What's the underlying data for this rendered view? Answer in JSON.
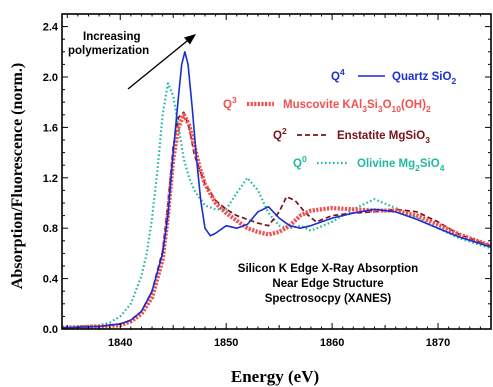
{
  "chart_data": {
    "type": "line",
    "title": "",
    "xlabel": "Energy (eV)",
    "ylabel": "Absorption/Fluorescence (norm.)",
    "xlim": [
      1834.5,
      1875
    ],
    "ylim": [
      0,
      2.5
    ],
    "x_ticks": [
      1840,
      1850,
      1860,
      1870
    ],
    "y_ticks": [
      0.0,
      0.4,
      0.8,
      1.2,
      1.6,
      2.0,
      2.4
    ],
    "y_tick_labels": [
      "0.0",
      "0.4",
      "0.8",
      "1.2",
      "1.6",
      "2.0",
      "2.4"
    ],
    "grid": false,
    "legend_position": "top-right",
    "series": [
      {
        "name": "Quartz SiO2",
        "q_label": "Q4",
        "legend": {
          "q": "Q",
          "q_sup": "4",
          "pre": "Quartz SiO",
          "sub": "2",
          "mid": "",
          "sub2": "",
          "post": ""
        },
        "color": "#1a2fd0",
        "style": "solid",
        "x": [
          1834.5,
          1838,
          1840,
          1841,
          1842,
          1843,
          1844,
          1844.5,
          1845,
          1845.5,
          1845.8,
          1846.1,
          1846.4,
          1846.8,
          1847.2,
          1847.6,
          1848,
          1848.5,
          1849,
          1850,
          1851,
          1852,
          1853,
          1854,
          1855,
          1856,
          1857,
          1858,
          1860,
          1862,
          1864,
          1866,
          1868,
          1870,
          1872,
          1875
        ],
        "y": [
          0.01,
          0.02,
          0.04,
          0.07,
          0.14,
          0.3,
          0.6,
          0.9,
          1.4,
          1.85,
          2.1,
          2.2,
          2.1,
          1.75,
          1.35,
          1.02,
          0.8,
          0.74,
          0.76,
          0.82,
          0.8,
          0.83,
          0.93,
          0.97,
          0.88,
          0.82,
          0.8,
          0.82,
          0.88,
          0.92,
          0.95,
          0.93,
          0.87,
          0.8,
          0.73,
          0.65
        ]
      },
      {
        "name": "Muscovite KAl3Si3O10(OH)2",
        "q_label": "Q3",
        "legend": {
          "q": "Q",
          "q_sup": "3",
          "pre": "Muscovite KAl",
          "sub": "3",
          "mid": "Si",
          "sub2": "3",
          "post": "O",
          "sub3": "10",
          "post2": "(OH)",
          "sub4": "2"
        },
        "color": "#f05050",
        "style": "thick-dotted",
        "x": [
          1834.5,
          1838,
          1840,
          1841,
          1842,
          1843,
          1844,
          1844.5,
          1845,
          1845.5,
          1846,
          1846.5,
          1847,
          1847.5,
          1848,
          1849,
          1850,
          1851,
          1852,
          1853,
          1854,
          1855,
          1856,
          1857,
          1858,
          1860,
          1862,
          1864,
          1866,
          1868,
          1870,
          1872,
          1875
        ],
        "y": [
          0.01,
          0.02,
          0.03,
          0.06,
          0.12,
          0.25,
          0.55,
          0.9,
          1.35,
          1.6,
          1.7,
          1.62,
          1.45,
          1.28,
          1.15,
          1.0,
          0.92,
          0.86,
          0.8,
          0.77,
          0.75,
          0.77,
          0.82,
          0.9,
          0.94,
          0.96,
          0.95,
          0.94,
          0.94,
          0.9,
          0.83,
          0.75,
          0.66
        ]
      },
      {
        "name": "Enstatite MgSiO3",
        "q_label": "Q2",
        "legend": {
          "q": "Q",
          "q_sup": "2",
          "pre": "Enstatite MgSiO",
          "sub": "3",
          "mid": "",
          "sub2": "",
          "post": ""
        },
        "color": "#7a1018",
        "style": "dashed",
        "x": [
          1834.5,
          1838,
          1840,
          1841,
          1842,
          1843,
          1844,
          1844.5,
          1845,
          1845.5,
          1846,
          1846.5,
          1847,
          1848,
          1849,
          1850,
          1851,
          1852,
          1853,
          1854,
          1855,
          1855.7,
          1856.5,
          1857.5,
          1858.5,
          1860,
          1862,
          1864,
          1866,
          1868,
          1870,
          1872,
          1875
        ],
        "y": [
          0.01,
          0.02,
          0.04,
          0.07,
          0.14,
          0.3,
          0.62,
          1.0,
          1.45,
          1.68,
          1.72,
          1.6,
          1.38,
          1.15,
          1.02,
          0.95,
          0.9,
          0.87,
          0.84,
          0.82,
          0.93,
          1.05,
          1.02,
          0.92,
          0.85,
          0.9,
          0.92,
          0.93,
          0.95,
          0.93,
          0.85,
          0.75,
          0.66
        ]
      },
      {
        "name": "Olivine Mg2SiO4",
        "q_label": "Q0",
        "legend": {
          "q": "Q",
          "q_sup": "0",
          "pre": "Olivine Mg",
          "sub": "2",
          "mid": "SiO",
          "sub2": "4",
          "post": ""
        },
        "color": "#20b8a0",
        "style": "dotted",
        "x": [
          1834.5,
          1838,
          1839,
          1840,
          1841,
          1842,
          1842.5,
          1843,
          1843.5,
          1844,
          1844.5,
          1845,
          1845.5,
          1846,
          1846.5,
          1847,
          1848,
          1849,
          1850,
          1851,
          1852,
          1853,
          1854,
          1855,
          1856,
          1857,
          1858,
          1860,
          1862,
          1864,
          1866,
          1868,
          1870,
          1872,
          1875
        ],
        "y": [
          0.01,
          0.03,
          0.05,
          0.1,
          0.2,
          0.42,
          0.6,
          0.88,
          1.25,
          1.7,
          1.95,
          1.85,
          1.6,
          1.35,
          1.2,
          1.1,
          0.98,
          0.95,
          0.95,
          1.08,
          1.2,
          1.1,
          0.92,
          0.82,
          0.8,
          0.82,
          0.78,
          0.85,
          0.95,
          1.03,
          0.96,
          0.88,
          0.8,
          0.72,
          0.64
        ]
      }
    ],
    "annotations": {
      "arrow_label_line1": "Increasing",
      "arrow_label_line2": "polymerization",
      "caption_line1": "Silicon K Edge X-Ray Absorption",
      "caption_line2": "Near Edge Structure",
      "caption_line3": "Spectrosocpy (XANES)"
    }
  }
}
